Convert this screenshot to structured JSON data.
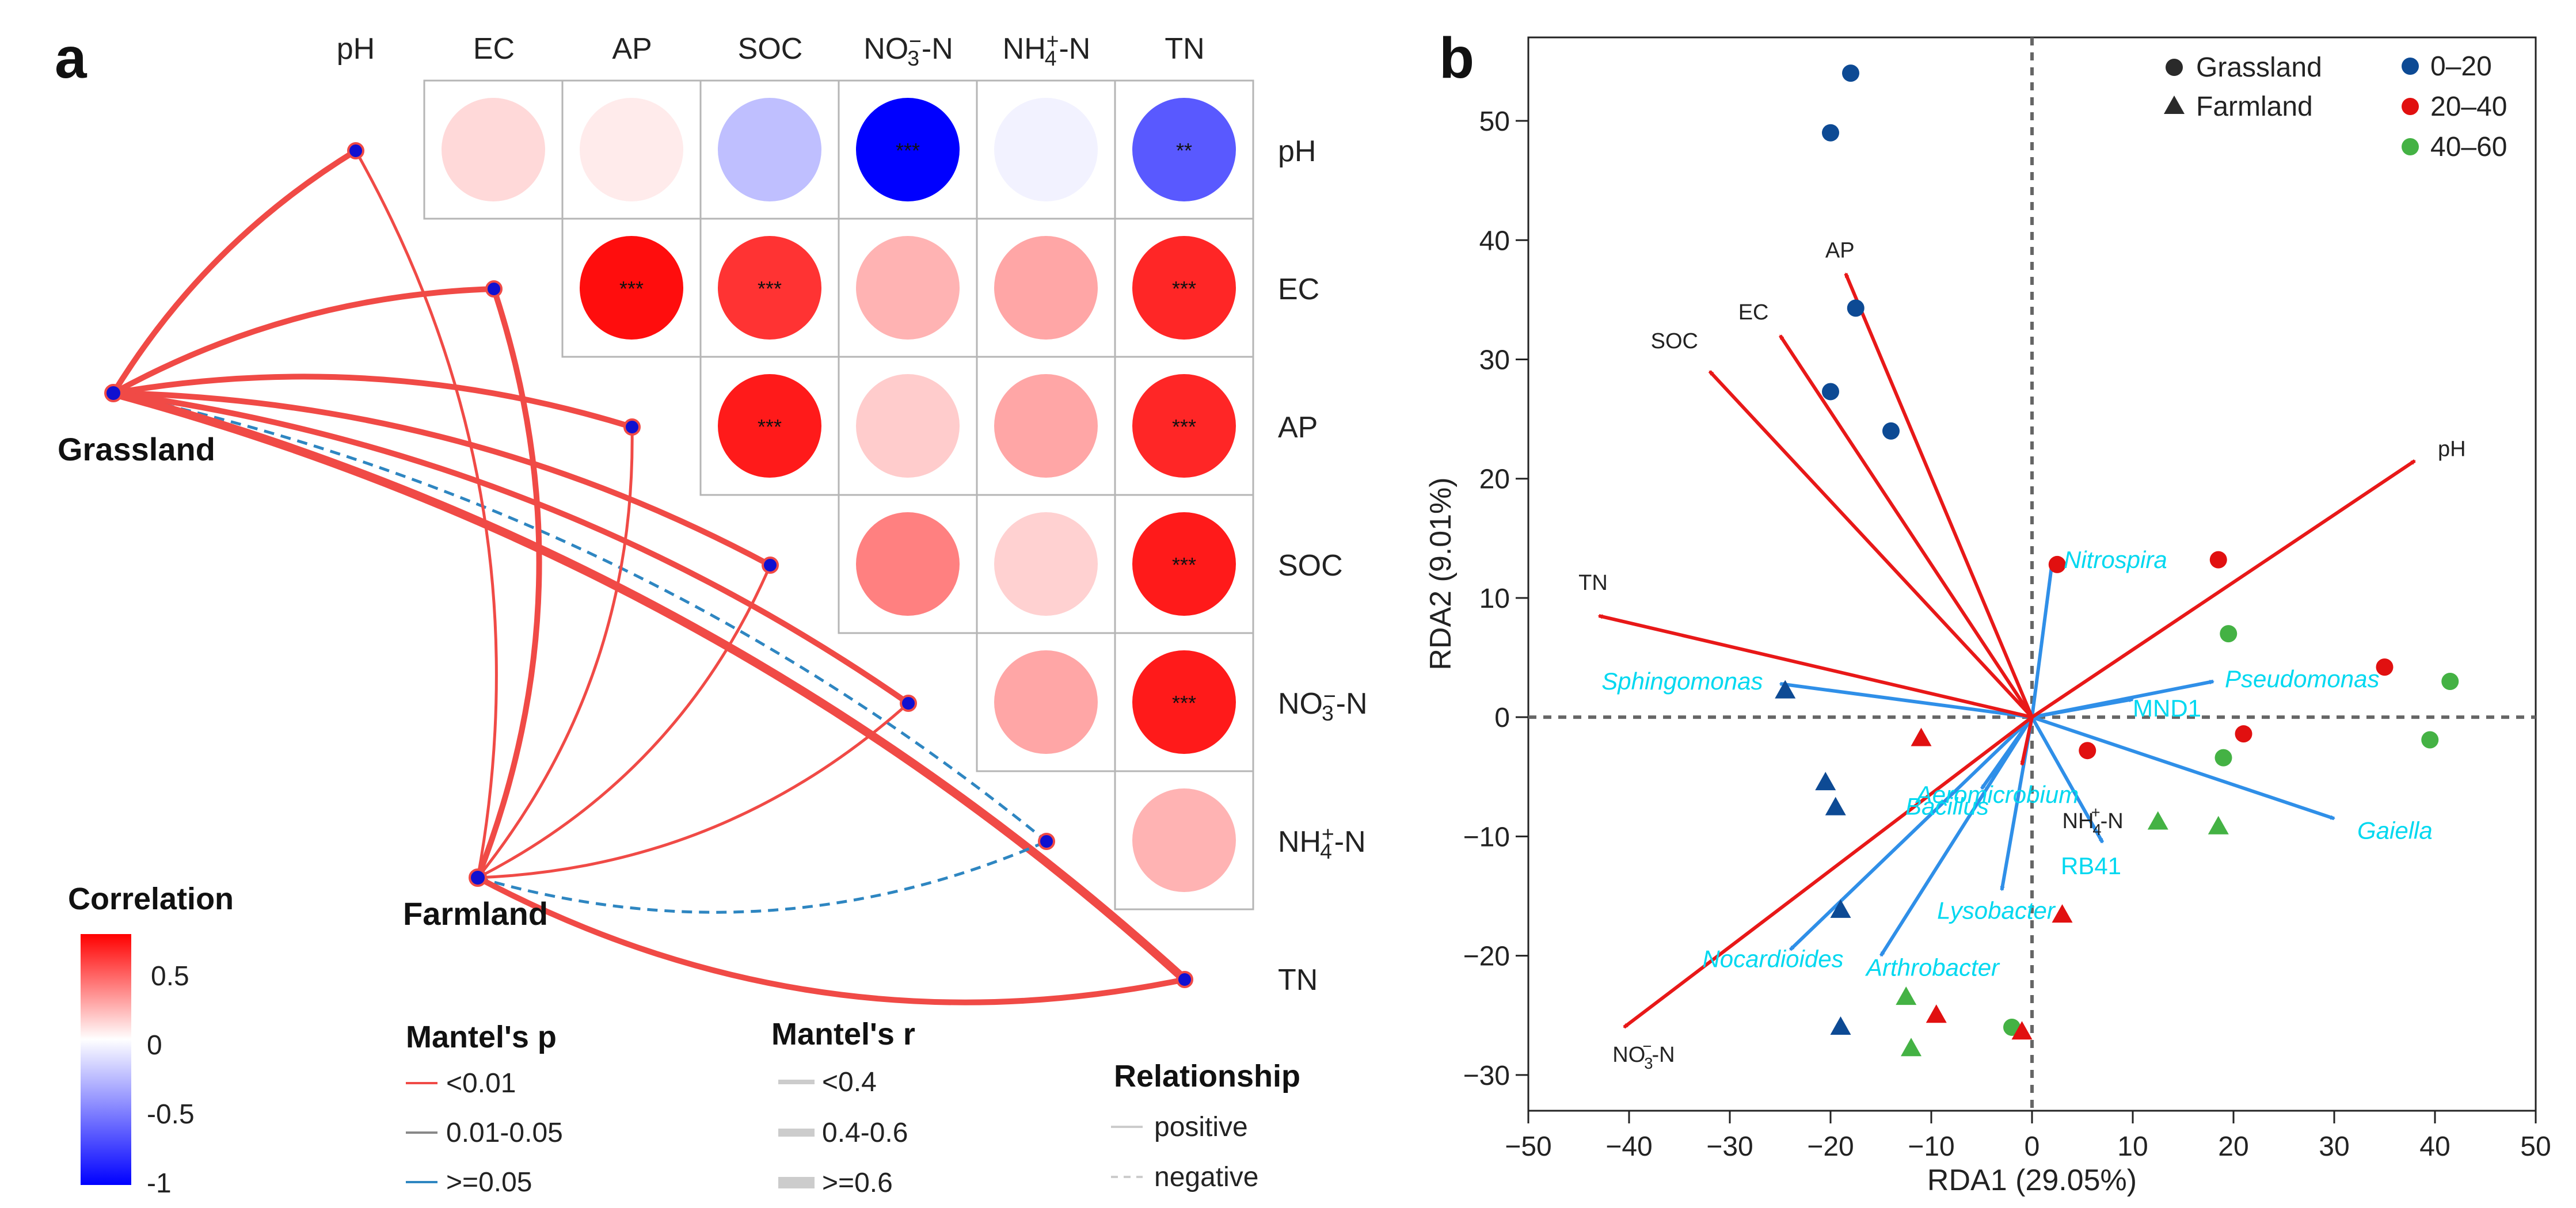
{
  "panel_a": {
    "label": "a",
    "variables": [
      "pH",
      "EC",
      "AP",
      "SOC",
      "NO3-N",
      "NH4-N",
      "TN"
    ],
    "variable_labels": {
      "pH": {
        "main": "pH"
      },
      "EC": {
        "main": "EC"
      },
      "AP": {
        "main": "AP"
      },
      "SOC": {
        "main": "SOC"
      },
      "NO3-N": {
        "pre": "NO",
        "sub": "3",
        "sup": "−",
        "post": "-N"
      },
      "NH4-N": {
        "pre": "NH",
        "sub": "4",
        "sup": "+",
        "post": "-N"
      },
      "TN": {
        "main": "TN"
      }
    },
    "correlation_cells": [
      {
        "row": "pH",
        "col": "EC",
        "r": 0.15,
        "sig": ""
      },
      {
        "row": "pH",
        "col": "AP",
        "r": 0.08,
        "sig": ""
      },
      {
        "row": "pH",
        "col": "SOC",
        "r": -0.25,
        "sig": ""
      },
      {
        "row": "pH",
        "col": "NO3-N",
        "r": -1.0,
        "sig": "***"
      },
      {
        "row": "pH",
        "col": "NH4-N",
        "r": -0.05,
        "sig": ""
      },
      {
        "row": "pH",
        "col": "TN",
        "r": -0.65,
        "sig": "**"
      },
      {
        "row": "EC",
        "col": "AP",
        "r": 0.95,
        "sig": "***"
      },
      {
        "row": "EC",
        "col": "SOC",
        "r": 0.8,
        "sig": "***"
      },
      {
        "row": "EC",
        "col": "NO3-N",
        "r": 0.3,
        "sig": ""
      },
      {
        "row": "EC",
        "col": "NH4-N",
        "r": 0.35,
        "sig": ""
      },
      {
        "row": "EC",
        "col": "TN",
        "r": 0.85,
        "sig": "***"
      },
      {
        "row": "AP",
        "col": "SOC",
        "r": 0.9,
        "sig": "***"
      },
      {
        "row": "AP",
        "col": "NO3-N",
        "r": 0.2,
        "sig": ""
      },
      {
        "row": "AP",
        "col": "NH4-N",
        "r": 0.35,
        "sig": ""
      },
      {
        "row": "AP",
        "col": "TN",
        "r": 0.85,
        "sig": "***"
      },
      {
        "row": "SOC",
        "col": "NO3-N",
        "r": 0.5,
        "sig": ""
      },
      {
        "row": "SOC",
        "col": "NH4-N",
        "r": 0.18,
        "sig": ""
      },
      {
        "row": "SOC",
        "col": "TN",
        "r": 0.9,
        "sig": "***"
      },
      {
        "row": "NO3-N",
        "col": "NH4-N",
        "r": 0.35,
        "sig": ""
      },
      {
        "row": "NO3-N",
        "col": "TN",
        "r": 0.9,
        "sig": "***"
      },
      {
        "row": "NH4-N",
        "col": "TN",
        "r": 0.3,
        "sig": ""
      }
    ],
    "sites": [
      {
        "name": "Grassland"
      },
      {
        "name": "Farmland"
      }
    ],
    "mantel_links": [
      {
        "from": "Grassland",
        "to": "pH",
        "p": "<0.01",
        "r": "0.4-0.6",
        "type": "positive"
      },
      {
        "from": "Grassland",
        "to": "EC",
        "p": "<0.01",
        "r": "0.4-0.6",
        "type": "positive"
      },
      {
        "from": "Grassland",
        "to": "AP",
        "p": "<0.01",
        "r": "0.4-0.6",
        "type": "positive"
      },
      {
        "from": "Grassland",
        "to": "SOC",
        "p": "<0.01",
        "r": "0.4-0.6",
        "type": "positive"
      },
      {
        "from": "Grassland",
        "to": "NO3-N",
        "p": "<0.01",
        "r": "0.4-0.6",
        "type": "positive"
      },
      {
        "from": "Grassland",
        "to": "NH4-N",
        "p": ">=0.05",
        "r": "<0.4",
        "type": "negative"
      },
      {
        "from": "Grassland",
        "to": "TN",
        "p": "<0.01",
        "r": ">=0.6",
        "type": "positive"
      },
      {
        "from": "Farmland",
        "to": "pH",
        "p": "<0.01",
        "r": "<0.4",
        "type": "positive"
      },
      {
        "from": "Farmland",
        "to": "EC",
        "p": "<0.01",
        "r": "0.4-0.6",
        "type": "positive"
      },
      {
        "from": "Farmland",
        "to": "AP",
        "p": "<0.01",
        "r": "<0.4",
        "type": "positive"
      },
      {
        "from": "Farmland",
        "to": "SOC",
        "p": "<0.01",
        "r": "<0.4",
        "type": "positive"
      },
      {
        "from": "Farmland",
        "to": "NO3-N",
        "p": "<0.01",
        "r": "<0.4",
        "type": "positive"
      },
      {
        "from": "Farmland",
        "to": "NH4-N",
        "p": ">=0.05",
        "r": "<0.4",
        "type": "negative"
      },
      {
        "from": "Farmland",
        "to": "TN",
        "p": "<0.01",
        "r": "0.4-0.6",
        "type": "positive"
      }
    ],
    "colorbar": {
      "title": "Correlation",
      "ticks": [
        "0.5",
        "0",
        "-0.5",
        "-1"
      ]
    },
    "legend_p": {
      "title": "Mantel's p",
      "items": [
        "<0.01",
        "0.01-0.05",
        ">=0.05"
      ],
      "colors": [
        "#f04a46",
        "#888888",
        "#2e86c1"
      ]
    },
    "legend_r": {
      "title": "Mantel's r",
      "items": [
        "<0.4",
        "0.4-0.6",
        ">=0.6"
      ]
    },
    "legend_rel": {
      "title": "Relationship",
      "items": [
        "positive",
        "negative"
      ]
    },
    "colors": {
      "positive": "#f04a46",
      "negative": "#2e86c1",
      "node": "#1010d0"
    }
  },
  "chart_data": {
    "type": "scatter",
    "panel_label": "b",
    "xlabel": "RDA1 (29.05%)",
    "ylabel": "RDA2 (9.01%)",
    "xlim": [
      -50,
      50
    ],
    "ylim": [
      -33,
      57
    ],
    "xticks": [
      -50,
      -40,
      -30,
      -20,
      -10,
      0,
      10,
      20,
      30,
      40,
      50
    ],
    "yticks": [
      -30,
      -20,
      -10,
      0,
      10,
      20,
      30,
      40,
      50
    ],
    "legend_shape": [
      {
        "label": "Grassland",
        "shape": "circle"
      },
      {
        "label": "Farmland",
        "shape": "triangle"
      }
    ],
    "legend_depth": [
      {
        "label": "0–20",
        "color": "#0d4a94"
      },
      {
        "label": "20–40",
        "color": "#e11010"
      },
      {
        "label": "40–60",
        "color": "#44b244"
      }
    ],
    "points": [
      {
        "x": -18,
        "y": 54,
        "site": "Grassland",
        "depth": "0–20"
      },
      {
        "x": -20,
        "y": 49,
        "site": "Grassland",
        "depth": "0–20"
      },
      {
        "x": -17.5,
        "y": 34.3,
        "site": "Grassland",
        "depth": "0–20"
      },
      {
        "x": -20,
        "y": 27.3,
        "site": "Grassland",
        "depth": "0–20"
      },
      {
        "x": -14,
        "y": 24,
        "site": "Grassland",
        "depth": "0–20"
      },
      {
        "x": 2.5,
        "y": 12.8,
        "site": "Grassland",
        "depth": "20–40"
      },
      {
        "x": 18.5,
        "y": 13.2,
        "site": "Grassland",
        "depth": "20–40"
      },
      {
        "x": 35,
        "y": 4.2,
        "site": "Grassland",
        "depth": "20–40"
      },
      {
        "x": 21,
        "y": -1.4,
        "site": "Grassland",
        "depth": "20–40"
      },
      {
        "x": 5.5,
        "y": -2.8,
        "site": "Grassland",
        "depth": "20–40"
      },
      {
        "x": 19.5,
        "y": 7,
        "site": "Grassland",
        "depth": "40–60"
      },
      {
        "x": 41.5,
        "y": 3,
        "site": "Grassland",
        "depth": "40–60"
      },
      {
        "x": 39.5,
        "y": -1.9,
        "site": "Grassland",
        "depth": "40–60"
      },
      {
        "x": 19,
        "y": -3.4,
        "site": "Grassland",
        "depth": "40–60"
      },
      {
        "x": -2,
        "y": -26,
        "site": "Grassland",
        "depth": "40–60"
      },
      {
        "x": -24.5,
        "y": 2.2,
        "site": "Farmland",
        "depth": "0–20"
      },
      {
        "x": -20.5,
        "y": -5.5,
        "site": "Farmland",
        "depth": "0–20"
      },
      {
        "x": -19.5,
        "y": -7.6,
        "site": "Farmland",
        "depth": "0–20"
      },
      {
        "x": -19,
        "y": -16.2,
        "site": "Farmland",
        "depth": "0–20"
      },
      {
        "x": -19,
        "y": -26,
        "site": "Farmland",
        "depth": "0–20"
      },
      {
        "x": -11,
        "y": -1.8,
        "site": "Farmland",
        "depth": "20–40"
      },
      {
        "x": 3,
        "y": -16.6,
        "site": "Farmland",
        "depth": "20–40"
      },
      {
        "x": -9.5,
        "y": -25,
        "site": "Farmland",
        "depth": "20–40"
      },
      {
        "x": -1,
        "y": -26.4,
        "site": "Farmland",
        "depth": "20–40"
      },
      {
        "x": 12.5,
        "y": -8.8,
        "site": "Farmland",
        "depth": "40–60"
      },
      {
        "x": 18.5,
        "y": -9.2,
        "site": "Farmland",
        "depth": "40–60"
      },
      {
        "x": -12.5,
        "y": -23.5,
        "site": "Farmland",
        "depth": "40–60"
      },
      {
        "x": -12,
        "y": -27.8,
        "site": "Farmland",
        "depth": "40–60"
      }
    ],
    "env_vectors": [
      {
        "name": "pH",
        "x": 38,
        "y": 21.5
      },
      {
        "name": "AP",
        "x": -18.5,
        "y": 37.2
      },
      {
        "name": "EC",
        "x": -25,
        "y": 32
      },
      {
        "name": "SOC",
        "x": -32,
        "y": 29
      },
      {
        "name": "TN",
        "x": -43,
        "y": 8.5
      },
      {
        "name": "NO3-N",
        "x": -40.5,
        "y": -26
      },
      {
        "name": "NH4-N",
        "x": -1,
        "y": -4
      }
    ],
    "env_label_parts": {
      "NO3-N": {
        "pre": "NO",
        "sub": "3",
        "sup": "−",
        "post": "-N"
      },
      "NH4-N": {
        "pre": "NH",
        "sub": "4",
        "sup": "+",
        "post": "-N"
      }
    },
    "species_vectors": [
      {
        "name": "Nitrospira",
        "x": 2,
        "y": 13
      },
      {
        "name": "Pseudomonas",
        "x": 18,
        "y": 3
      },
      {
        "name": "MND1",
        "x": 10,
        "y": 1.5
      },
      {
        "name": "Gaiella",
        "x": 30,
        "y": -8.5
      },
      {
        "name": "RB41",
        "x": 7,
        "y": -10.5
      },
      {
        "name": "Lysobacter",
        "x": -3,
        "y": -14.5
      },
      {
        "name": "Aeromicrobium",
        "x": -4,
        "y": -5
      },
      {
        "name": "Bacillus",
        "x": -5,
        "y": -6
      },
      {
        "name": "Arthrobacter",
        "x": -15,
        "y": -20
      },
      {
        "name": "Nocardioides",
        "x": -24,
        "y": -19.5
      },
      {
        "name": "Sphingomonas",
        "x": -25,
        "y": 2.8
      }
    ],
    "vector_colors": {
      "env": "#e81818",
      "species": "#2f8fe8"
    }
  }
}
